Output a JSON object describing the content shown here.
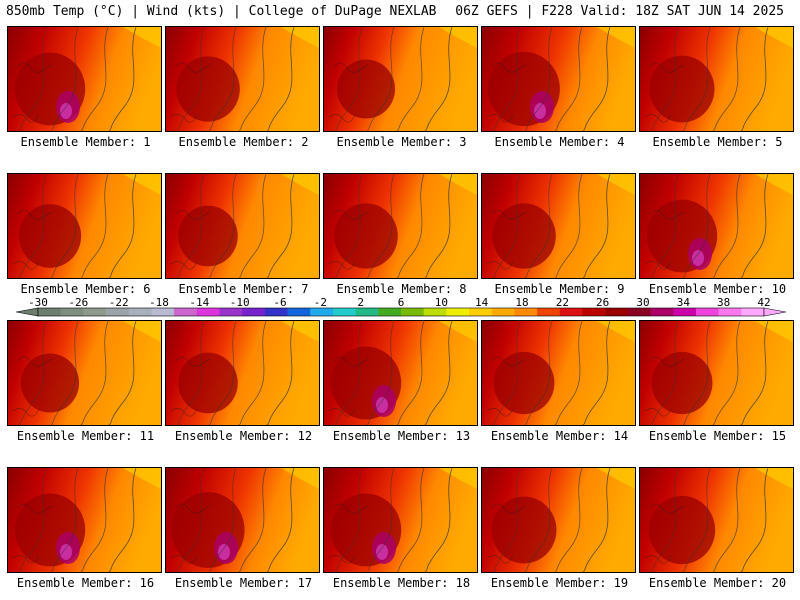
{
  "header": {
    "left": "850mb Temp (°C) | Wind (kts) | College of DuPage NEXLAB",
    "right": "06Z GEFS | F228 Valid: 18Z SAT JUN 14 2025"
  },
  "panels": [
    {
      "label": "Ensemble Member: 1",
      "intensity": 0.8,
      "hot_spot": true
    },
    {
      "label": "Ensemble Member: 2",
      "intensity": 0.7,
      "hot_spot": false
    },
    {
      "label": "Ensemble Member: 3",
      "intensity": 0.62,
      "hot_spot": false
    },
    {
      "label": "Ensemble Member: 4",
      "intensity": 0.82,
      "hot_spot": true
    },
    {
      "label": "Ensemble Member: 5",
      "intensity": 0.72,
      "hot_spot": false
    },
    {
      "label": "Ensemble Member: 6",
      "intensity": 0.68,
      "hot_spot": false
    },
    {
      "label": "Ensemble Member: 7",
      "intensity": 0.64,
      "hot_spot": false
    },
    {
      "label": "Ensemble Member: 8",
      "intensity": 0.7,
      "hot_spot": false
    },
    {
      "label": "Ensemble Member: 9",
      "intensity": 0.7,
      "hot_spot": false
    },
    {
      "label": "Ensemble Member: 10",
      "intensity": 0.8,
      "hot_spot": true
    },
    {
      "label": "Ensemble Member: 11",
      "intensity": 0.62,
      "hot_spot": false
    },
    {
      "label": "Ensemble Member: 12",
      "intensity": 0.64,
      "hot_spot": false
    },
    {
      "label": "Ensemble Member: 13",
      "intensity": 0.8,
      "hot_spot": true
    },
    {
      "label": "Ensemble Member: 14",
      "intensity": 0.66,
      "hot_spot": false
    },
    {
      "label": "Ensemble Member: 15",
      "intensity": 0.66,
      "hot_spot": false
    },
    {
      "label": "Ensemble Member: 16",
      "intensity": 0.8,
      "hot_spot": true
    },
    {
      "label": "Ensemble Member: 17",
      "intensity": 0.84,
      "hot_spot": true
    },
    {
      "label": "Ensemble Member: 18",
      "intensity": 0.8,
      "hot_spot": true
    },
    {
      "label": "Ensemble Member: 19",
      "intensity": 0.72,
      "hot_spot": false
    },
    {
      "label": "Ensemble Member: 20",
      "intensity": 0.74,
      "hot_spot": false
    }
  ],
  "colorbar": {
    "ticks": [
      "-30",
      "-26",
      "-22",
      "-18",
      "-14",
      "-10",
      "-6",
      "-2",
      "2",
      "6",
      "10",
      "14",
      "18",
      "22",
      "26",
      "30",
      "34",
      "38",
      "42"
    ],
    "colors": [
      "#6e7e6e",
      "#7f8f7f",
      "#8e9a8e",
      "#9aa2aa",
      "#a8b0bc",
      "#b9b9d3",
      "#cc66cc",
      "#dd33dd",
      "#9933cc",
      "#7722cc",
      "#3333cc",
      "#1166dd",
      "#22aaee",
      "#22cccc",
      "#22bb88",
      "#44aa22",
      "#77bb00",
      "#bbdd00",
      "#eeee00",
      "#ffcc00",
      "#ffaa00",
      "#ff8800",
      "#ee4400",
      "#dd1111",
      "#bb0000",
      "#990000",
      "#880022",
      "#aa0066",
      "#cc00aa",
      "#ee44dd",
      "#ff77ee",
      "#ffaaff"
    ]
  }
}
